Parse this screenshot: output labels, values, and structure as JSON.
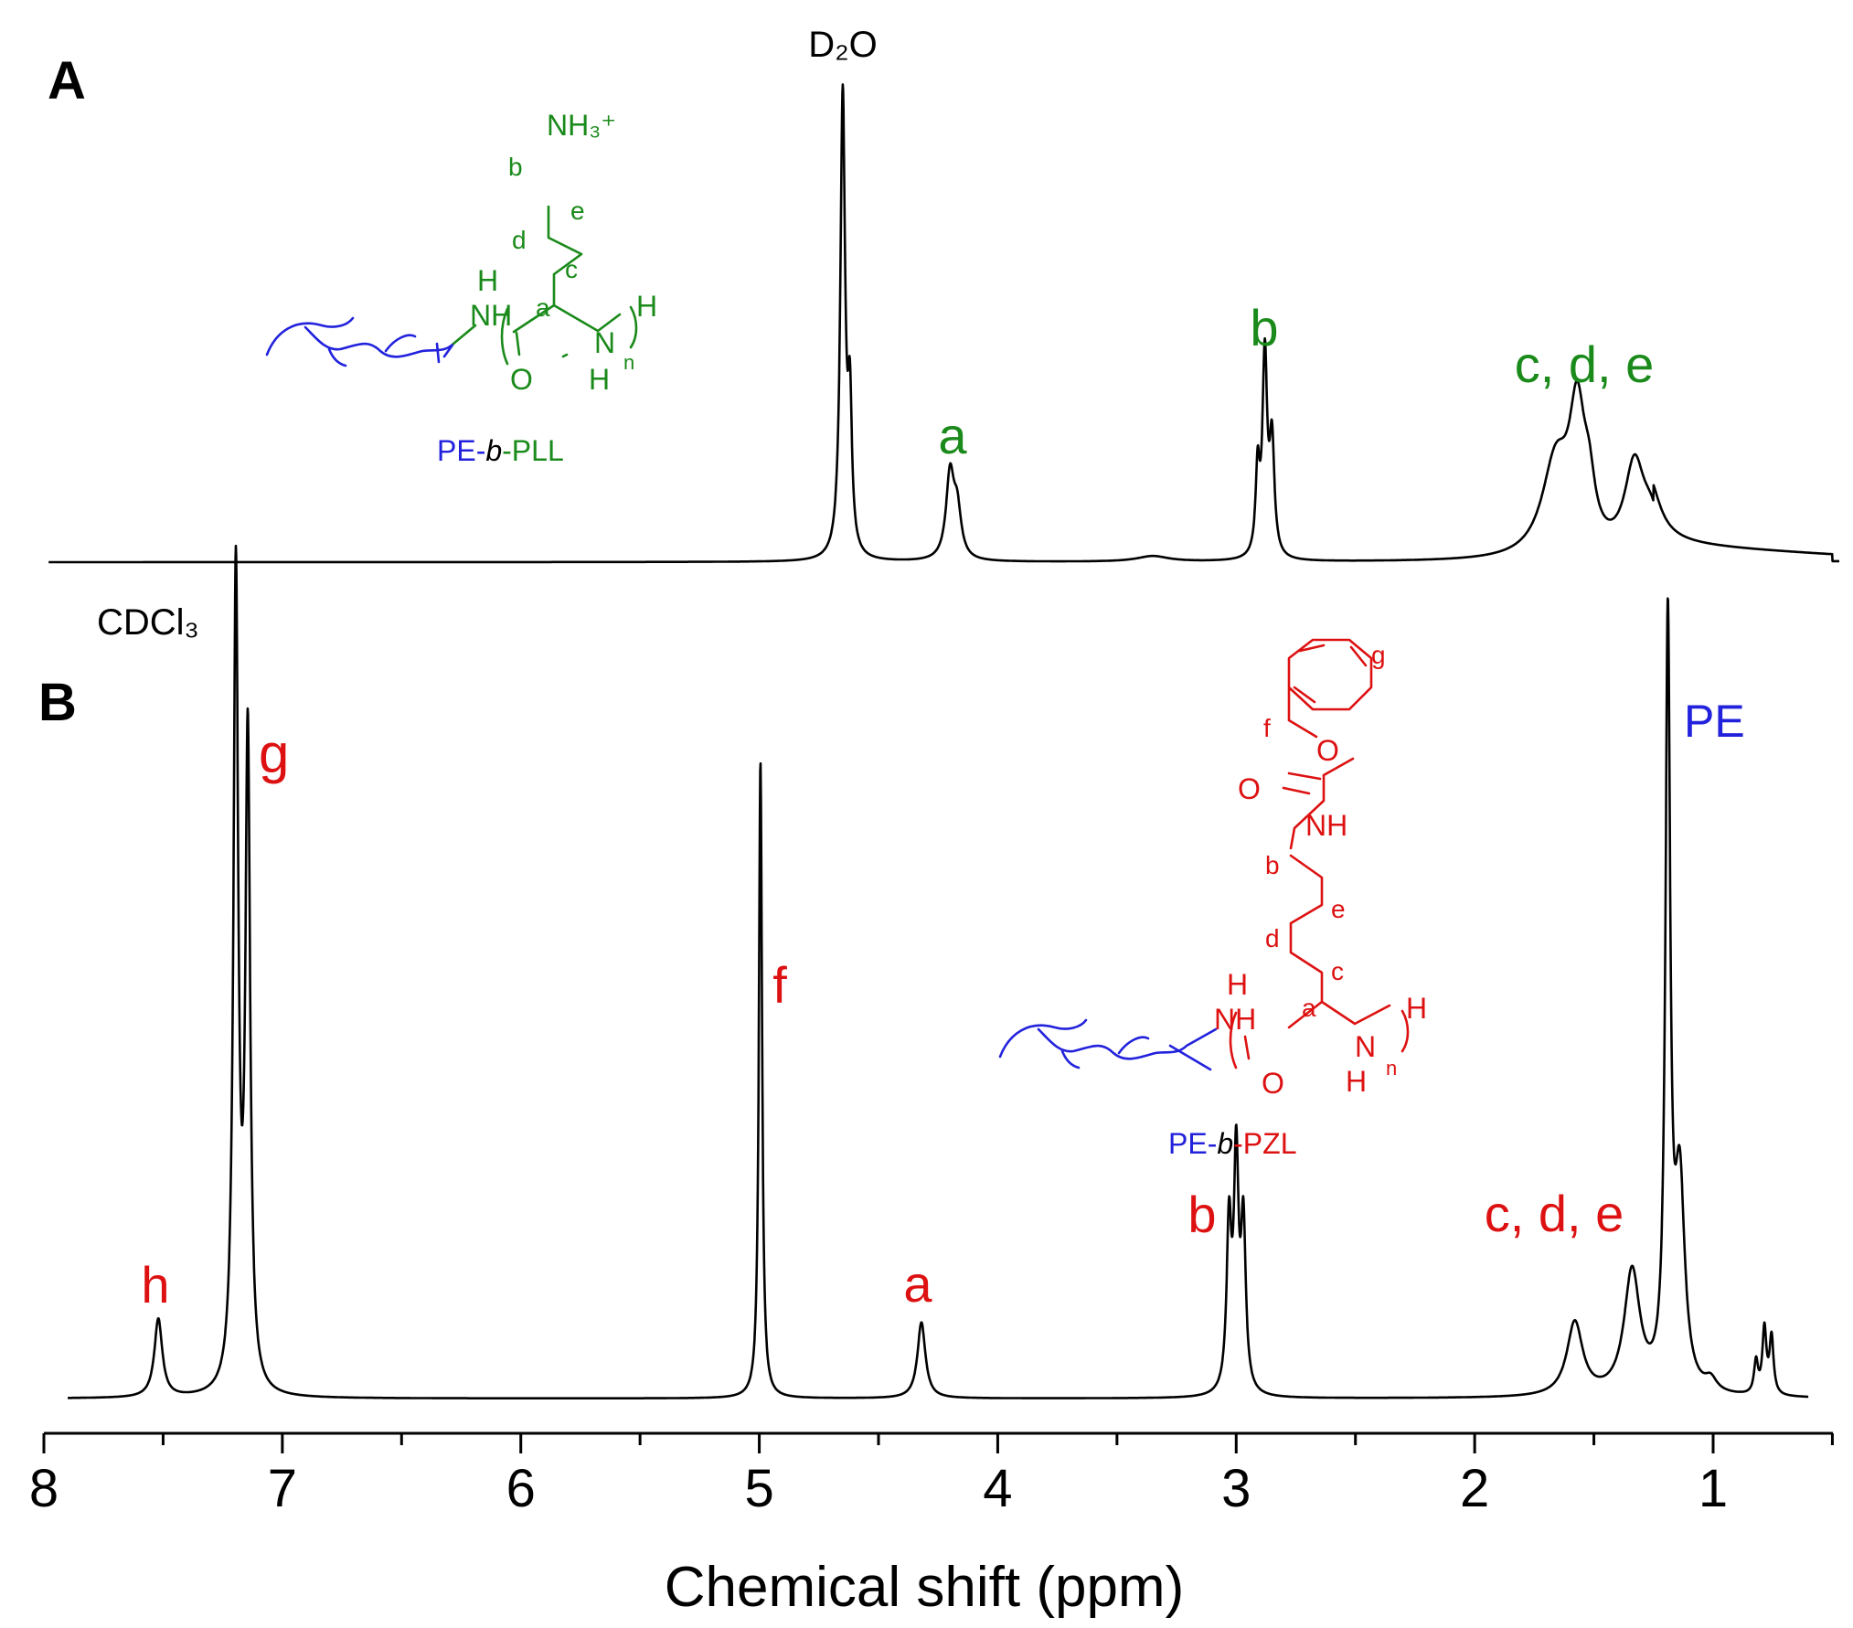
{
  "chart_data": [
    {
      "panel": "A",
      "type": "line",
      "description": "1H NMR spectrum of PE-b-PLL",
      "xlabel": "Chemical shift (ppm)",
      "xlim": [
        8.0,
        0.5
      ],
      "x_direction": "reversed",
      "ylabel": "",
      "baseline": 0,
      "peaks": [
        {
          "shift": 4.65,
          "height": 100,
          "width": 0.012,
          "label": "D2O"
        },
        {
          "shift": 4.62,
          "height": 30,
          "width": 0.01,
          "label": ""
        },
        {
          "shift": 4.2,
          "height": 18,
          "width": 0.02,
          "label": "a"
        },
        {
          "shift": 4.17,
          "height": 10,
          "width": 0.02,
          "label": ""
        },
        {
          "shift": 3.35,
          "height": 1.2,
          "width": 0.08,
          "label": ""
        },
        {
          "shift": 2.91,
          "height": 18,
          "width": 0.01,
          "label": ""
        },
        {
          "shift": 2.88,
          "height": 43,
          "width": 0.012,
          "label": "b"
        },
        {
          "shift": 2.85,
          "height": 24,
          "width": 0.012,
          "label": ""
        },
        {
          "shift": 1.66,
          "height": 20,
          "width": 0.07,
          "label": ""
        },
        {
          "shift": 1.57,
          "height": 28,
          "width": 0.04,
          "label": "c, d, e"
        },
        {
          "shift": 1.52,
          "height": 10,
          "width": 0.03,
          "label": ""
        },
        {
          "shift": 1.33,
          "height": 19,
          "width": 0.05,
          "label": ""
        },
        {
          "shift": 1.26,
          "height": 7,
          "width": 0.05,
          "label": ""
        }
      ],
      "broad_background": {
        "from": 1.25,
        "to": 0.5,
        "start_height": 3.5,
        "end_height": 1.5
      },
      "peak_labels": [
        {
          "text": "D₂O",
          "shift": 4.65,
          "color": "#000000"
        },
        {
          "text": "a",
          "shift": 4.2,
          "color": "#1a8a1a"
        },
        {
          "text": "b",
          "shift": 2.88,
          "color": "#1a8a1a"
        },
        {
          "text": "c, d, e",
          "shift": 1.45,
          "color": "#1a8a1a"
        }
      ],
      "structure": {
        "name_prefix": "PE-",
        "name_italic": "b",
        "name_suffix": "-PLL",
        "prefix_color": "#2222dd",
        "block_color": "#1a8a1a",
        "atoms": [
          "NH₃⁺",
          "b",
          "e",
          "d",
          "c",
          "a",
          "H",
          "NH",
          "N",
          "H",
          "O",
          "H",
          "n"
        ]
      }
    },
    {
      "panel": "B",
      "type": "line",
      "description": "1H NMR spectrum of PE-b-PZL",
      "xlabel": "Chemical shift (ppm)",
      "xlim": [
        8.0,
        0.5
      ],
      "x_direction": "reversed",
      "baseline": 0,
      "peaks": [
        {
          "shift": 7.52,
          "height": 9.6,
          "width": 0.02,
          "label": "h"
        },
        {
          "shift": 7.195,
          "height": 100,
          "width": 0.012,
          "label": "CDCl3"
        },
        {
          "shift": 7.145,
          "height": 79,
          "width": 0.012,
          "label": "g"
        },
        {
          "shift": 4.995,
          "height": 78,
          "width": 0.008,
          "label": "f"
        },
        {
          "shift": 4.32,
          "height": 9.3,
          "width": 0.02,
          "label": "a"
        },
        {
          "shift": 3.03,
          "height": 20,
          "width": 0.012,
          "label": ""
        },
        {
          "shift": 3.0,
          "height": 28,
          "width": 0.012,
          "label": "b"
        },
        {
          "shift": 2.97,
          "height": 20,
          "width": 0.012,
          "label": ""
        },
        {
          "shift": 1.58,
          "height": 9,
          "width": 0.04,
          "label": "c, d, e"
        },
        {
          "shift": 1.34,
          "height": 15,
          "width": 0.04,
          "label": ""
        },
        {
          "shift": 1.19,
          "height": 92,
          "width": 0.012,
          "label": "PE"
        },
        {
          "shift": 1.14,
          "height": 25,
          "width": 0.025,
          "label": ""
        },
        {
          "shift": 1.01,
          "height": 1.5,
          "width": 0.03,
          "label": ""
        },
        {
          "shift": 0.82,
          "height": 4,
          "width": 0.01,
          "label": ""
        },
        {
          "shift": 0.785,
          "height": 8,
          "width": 0.01,
          "label": ""
        },
        {
          "shift": 0.755,
          "height": 7,
          "width": 0.01,
          "label": ""
        }
      ],
      "peak_labels": [
        {
          "text": "CDCl₃",
          "shift": 7.195,
          "color": "#000000"
        },
        {
          "text": "g",
          "shift": 7.145,
          "color": "#dd1111"
        },
        {
          "text": "h",
          "shift": 7.52,
          "color": "#dd1111"
        },
        {
          "text": "f",
          "shift": 4.995,
          "color": "#dd1111"
        },
        {
          "text": "a",
          "shift": 4.32,
          "color": "#dd1111"
        },
        {
          "text": "b",
          "shift": 3.0,
          "color": "#dd1111"
        },
        {
          "text": "c, d, e",
          "shift": 1.45,
          "color": "#dd1111"
        },
        {
          "text": "PE",
          "shift": 1.05,
          "color": "#2222dd"
        }
      ],
      "structure": {
        "name_prefix": "PE-",
        "name_italic": "b",
        "name_suffix": "-PZL",
        "prefix_color": "#2222dd",
        "block_color": "#dd1111",
        "atoms": [
          "g",
          "f",
          "O",
          "O",
          "NH",
          "b",
          "e",
          "d",
          "c",
          "a",
          "H",
          "NH",
          "N",
          "H",
          "O",
          "H",
          "n"
        ]
      }
    }
  ],
  "axis": {
    "ticks": [
      8,
      7,
      6,
      5,
      4,
      3,
      2,
      1
    ],
    "tick_labels": [
      "8",
      "7",
      "6",
      "5",
      "4",
      "3",
      "2",
      "1"
    ],
    "minor_step": 0.5,
    "label": "Chemical shift (ppm)"
  },
  "panel_labels": [
    "A",
    "B"
  ],
  "colors": {
    "green": "#1a8a1a",
    "red": "#dd1111",
    "blue": "#2222dd",
    "black": "#000000"
  }
}
